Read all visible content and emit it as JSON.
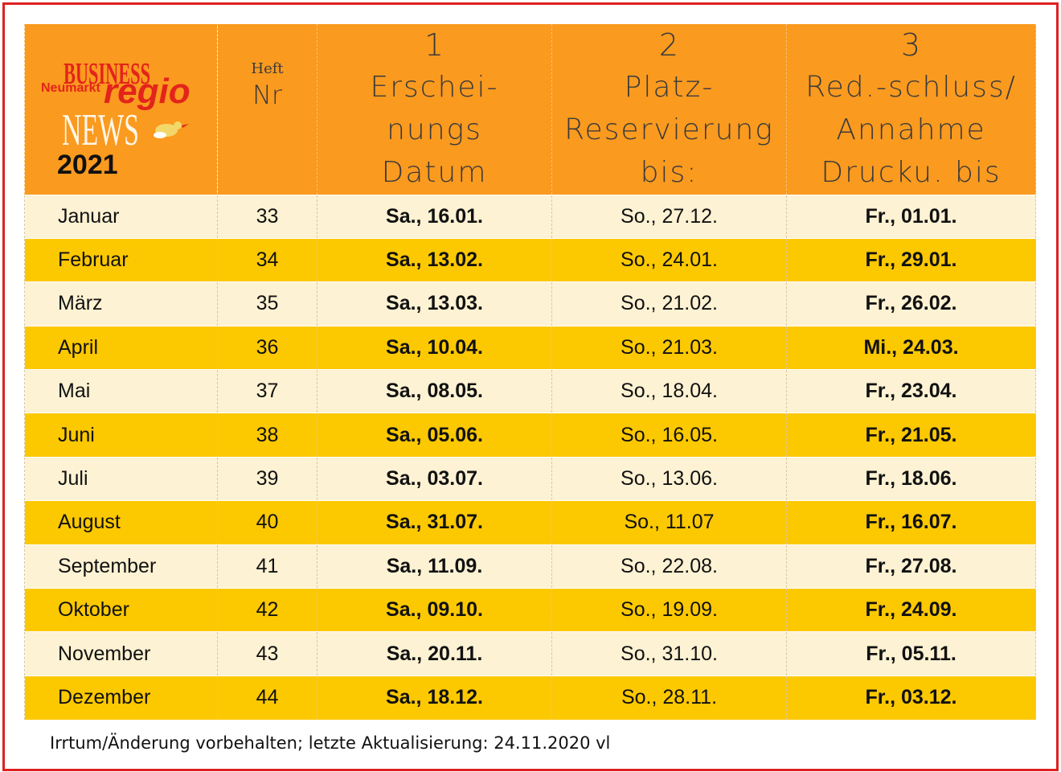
{
  "logo": {
    "line1": "BUSINESS",
    "line2_left": "Neumarkt",
    "line2_right": "regio",
    "line3": "NEWS",
    "year": "2021"
  },
  "header": {
    "heft_small": "Heft",
    "heft_nr": "Nr",
    "col1": {
      "num": "1",
      "line1": "Erschei-",
      "line2": "nungs",
      "line3": "Datum"
    },
    "col2": {
      "num": "2",
      "line1": "Platz-",
      "line2": "Reservierung",
      "line3": "bis:"
    },
    "col3": {
      "num": "3",
      "line1": "Red.-schluss/",
      "line2": "Annahme",
      "line3": "Drucku. bis"
    }
  },
  "rows": [
    {
      "month": "Januar",
      "nr": "33",
      "erscheinung": "Sa., 16.01.",
      "reservierung": "So., 27.12.",
      "schluss": "Fr., 01.01."
    },
    {
      "month": "Februar",
      "nr": "34",
      "erscheinung": "Sa., 13.02.",
      "reservierung": "So., 24.01.",
      "schluss": "Fr., 29.01."
    },
    {
      "month": "März",
      "nr": "35",
      "erscheinung": "Sa., 13.03.",
      "reservierung": "So., 21.02.",
      "schluss": "Fr., 26.02."
    },
    {
      "month": "April",
      "nr": "36",
      "erscheinung": "Sa., 10.04.",
      "reservierung": "So., 21.03.",
      "schluss": "Mi., 24.03."
    },
    {
      "month": "Mai",
      "nr": "37",
      "erscheinung": "Sa., 08.05.",
      "reservierung": "So., 18.04.",
      "schluss": "Fr., 23.04."
    },
    {
      "month": "Juni",
      "nr": "38",
      "erscheinung": "Sa., 05.06.",
      "reservierung": "So., 16.05.",
      "schluss": "Fr., 21.05."
    },
    {
      "month": "Juli",
      "nr": "39",
      "erscheinung": "Sa., 03.07.",
      "reservierung": "So., 13.06.",
      "schluss": "Fr., 18.06."
    },
    {
      "month": "August",
      "nr": "40",
      "erscheinung": "Sa., 31.07.",
      "reservierung": "So., 11.07",
      "schluss": "Fr., 16.07."
    },
    {
      "month": "September",
      "nr": "41",
      "erscheinung": "Sa., 11.09.",
      "reservierung": "So., 22.08.",
      "schluss": "Fr., 27.08."
    },
    {
      "month": "Oktober",
      "nr": "42",
      "erscheinung": "Sa., 09.10.",
      "reservierung": "So., 19.09.",
      "schluss": "Fr., 24.09."
    },
    {
      "month": "November",
      "nr": "43",
      "erscheinung": "Sa., 20.11.",
      "reservierung": "So., 31.10.",
      "schluss": "Fr., 05.11."
    },
    {
      "month": "Dezember",
      "nr": "44",
      "erscheinung": "Sa., 18.12.",
      "reservierung": "So., 28.11.",
      "schluss": "Fr., 03.12."
    }
  ],
  "footnote": "Irrtum/Änderung vorbehalten; letzte Aktualisierung: 24.11.2020 vl",
  "colors": {
    "header_bg": "#fa9a1f",
    "row_light": "#fdf2d3",
    "row_dark": "#fcc800",
    "frame": "#e02020",
    "logo_red": "#e3241b"
  }
}
